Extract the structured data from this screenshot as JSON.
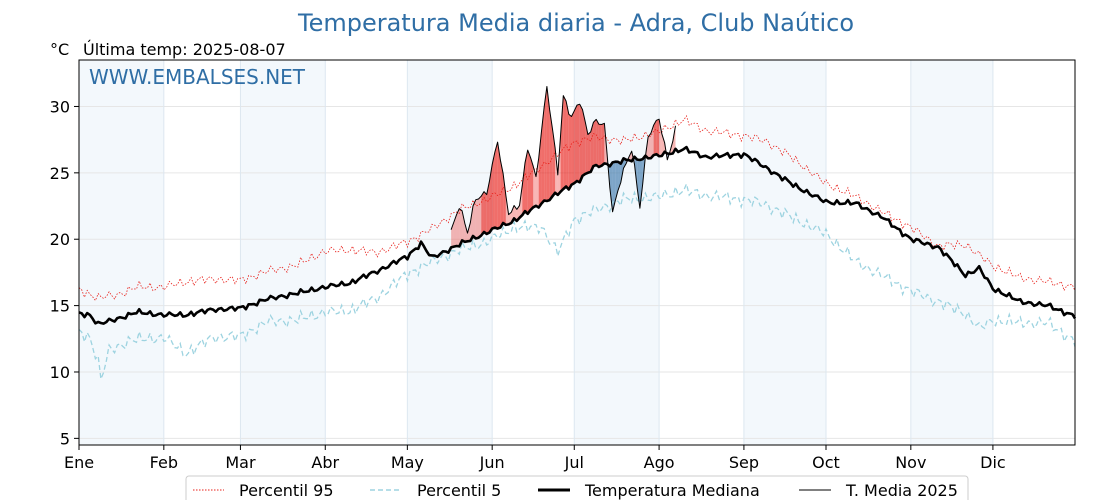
{
  "chart_data": {
    "type": "line",
    "title": "Temperatura Media diaria - Adra, Club Naútico",
    "unit_label": "°C",
    "last_temp_label": "Última temp: 2025-08-07",
    "watermark": "WWW.EMBALSES.NET",
    "x_axis": {
      "type": "day-of-year",
      "range_days": [
        1,
        365
      ],
      "month_ticks": [
        {
          "label": "Ene",
          "day": 1
        },
        {
          "label": "Feb",
          "day": 32
        },
        {
          "label": "Mar",
          "day": 60
        },
        {
          "label": "Abr",
          "day": 91
        },
        {
          "label": "May",
          "day": 121
        },
        {
          "label": "Jun",
          "day": 152
        },
        {
          "label": "Jul",
          "day": 182
        },
        {
          "label": "Ago",
          "day": 213
        },
        {
          "label": "Sep",
          "day": 244
        },
        {
          "label": "Oct",
          "day": 274
        },
        {
          "label": "Nov",
          "day": 305
        },
        {
          "label": "Dic",
          "day": 335
        }
      ]
    },
    "y_axis": {
      "range": [
        4.5,
        33.5
      ],
      "ticks": [
        5,
        10,
        15,
        20,
        25,
        30
      ]
    },
    "grid": true,
    "series": [
      {
        "name": "Percentil 95",
        "color": "#e8201a",
        "style": "dotted",
        "points": [
          [
            1,
            16.2
          ],
          [
            8,
            15.6
          ],
          [
            15,
            15.8
          ],
          [
            22,
            16.4
          ],
          [
            32,
            16.4
          ],
          [
            40,
            16.8
          ],
          [
            50,
            17.0
          ],
          [
            60,
            16.9
          ],
          [
            70,
            17.6
          ],
          [
            80,
            18.0
          ],
          [
            91,
            19.1
          ],
          [
            100,
            19.2
          ],
          [
            110,
            19.0
          ],
          [
            121,
            19.8
          ],
          [
            130,
            20.8
          ],
          [
            140,
            22.2
          ],
          [
            150,
            23.0
          ],
          [
            160,
            24.0
          ],
          [
            170,
            25.5
          ],
          [
            182,
            27.3
          ],
          [
            190,
            27.7
          ],
          [
            200,
            27.4
          ],
          [
            213,
            28.1
          ],
          [
            222,
            29.0
          ],
          [
            230,
            28.2
          ],
          [
            244,
            27.8
          ],
          [
            252,
            27.4
          ],
          [
            262,
            26.1
          ],
          [
            274,
            24.2
          ],
          [
            285,
            23.2
          ],
          [
            295,
            22.0
          ],
          [
            305,
            20.9
          ],
          [
            315,
            19.5
          ],
          [
            325,
            19.6
          ],
          [
            335,
            18.0
          ],
          [
            345,
            17.1
          ],
          [
            355,
            16.8
          ],
          [
            365,
            16.4
          ]
        ]
      },
      {
        "name": "Percentil 5",
        "color": "#9dd3e0",
        "style": "dashed",
        "points": [
          [
            1,
            13.0
          ],
          [
            5,
            12.6
          ],
          [
            8,
            10.8
          ],
          [
            9,
            9.4
          ],
          [
            12,
            11.6
          ],
          [
            20,
            12.4
          ],
          [
            32,
            12.6
          ],
          [
            40,
            11.4
          ],
          [
            50,
            12.6
          ],
          [
            60,
            12.7
          ],
          [
            70,
            13.8
          ],
          [
            80,
            13.9
          ],
          [
            91,
            14.5
          ],
          [
            100,
            14.6
          ],
          [
            110,
            15.6
          ],
          [
            121,
            17.4
          ],
          [
            130,
            18.3
          ],
          [
            140,
            19.2
          ],
          [
            150,
            19.8
          ],
          [
            160,
            20.9
          ],
          [
            170,
            20.9
          ],
          [
            176,
            19.0
          ],
          [
            182,
            21.5
          ],
          [
            190,
            22.2
          ],
          [
            200,
            23.0
          ],
          [
            213,
            23.2
          ],
          [
            222,
            23.7
          ],
          [
            230,
            23.3
          ],
          [
            244,
            23.0
          ],
          [
            252,
            22.6
          ],
          [
            262,
            21.6
          ],
          [
            274,
            20.4
          ],
          [
            285,
            18.3
          ],
          [
            295,
            17.2
          ],
          [
            305,
            16.1
          ],
          [
            315,
            15.3
          ],
          [
            325,
            14.4
          ],
          [
            330,
            13.3
          ],
          [
            335,
            13.9
          ],
          [
            345,
            13.7
          ],
          [
            355,
            13.7
          ],
          [
            365,
            12.3
          ]
        ]
      },
      {
        "name": "Temperatura Mediana",
        "color": "#000000",
        "style": "solid-thick",
        "points": [
          [
            1,
            14.4
          ],
          [
            5,
            14.3
          ],
          [
            8,
            13.6
          ],
          [
            15,
            14.0
          ],
          [
            22,
            14.5
          ],
          [
            32,
            14.3
          ],
          [
            40,
            14.3
          ],
          [
            50,
            14.7
          ],
          [
            60,
            14.8
          ],
          [
            70,
            15.5
          ],
          [
            80,
            15.9
          ],
          [
            91,
            16.4
          ],
          [
            100,
            16.7
          ],
          [
            110,
            17.6
          ],
          [
            121,
            18.7
          ],
          [
            126,
            19.7
          ],
          [
            130,
            18.6
          ],
          [
            140,
            19.6
          ],
          [
            150,
            20.5
          ],
          [
            160,
            21.4
          ],
          [
            170,
            22.7
          ],
          [
            182,
            24.2
          ],
          [
            190,
            25.5
          ],
          [
            200,
            25.9
          ],
          [
            213,
            26.3
          ],
          [
            222,
            26.8
          ],
          [
            230,
            26.2
          ],
          [
            244,
            26.4
          ],
          [
            252,
            25.4
          ],
          [
            262,
            24.1
          ],
          [
            274,
            22.8
          ],
          [
            285,
            22.7
          ],
          [
            295,
            21.6
          ],
          [
            305,
            20.0
          ],
          [
            315,
            19.4
          ],
          [
            325,
            17.3
          ],
          [
            330,
            17.8
          ],
          [
            335,
            16.3
          ],
          [
            345,
            15.3
          ],
          [
            355,
            15.0
          ],
          [
            365,
            14.2
          ]
        ]
      },
      {
        "name": "T. Media 2025",
        "color": "#000000",
        "style": "solid",
        "points": [
          [
            137,
            20.6
          ],
          [
            140,
            22.5
          ],
          [
            143,
            20.5
          ],
          [
            146,
            23.1
          ],
          [
            150,
            23.5
          ],
          [
            154,
            27.4
          ],
          [
            158,
            22.0
          ],
          [
            162,
            22.6
          ],
          [
            165,
            26.9
          ],
          [
            168,
            24.6
          ],
          [
            172,
            31.6
          ],
          [
            176,
            25.0
          ],
          [
            178,
            30.7
          ],
          [
            181,
            29.2
          ],
          [
            184,
            30.5
          ],
          [
            187,
            27.9
          ],
          [
            190,
            28.9
          ],
          [
            193,
            28.6
          ],
          [
            196,
            22.0
          ],
          [
            199,
            24.5
          ],
          [
            203,
            26.8
          ],
          [
            206,
            22.5
          ],
          [
            209,
            27.8
          ],
          [
            213,
            29.1
          ],
          [
            216,
            26.0
          ],
          [
            219,
            28.3
          ]
        ]
      }
    ],
    "fill_above_median_color": "#e8201a",
    "fill_below_median_color": "#2f6ea5"
  }
}
